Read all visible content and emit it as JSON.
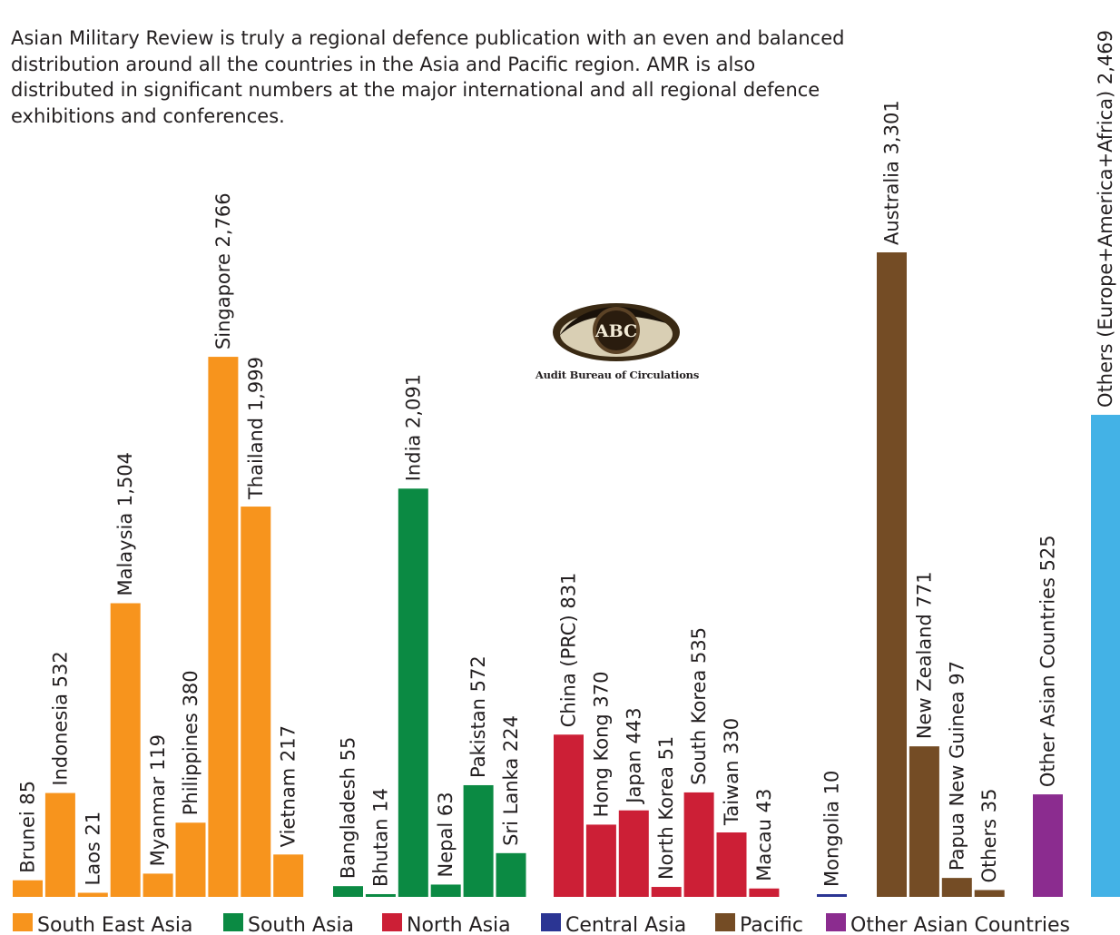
{
  "intro_text": "Asian Military Review is truly a regional defence publication with an even and balanced\ndistribution around all the countries in the Asia and Pacific region. AMR is also\ndistributed in significant numbers at  the major international and all regional defence\nexhibitions and conferences.",
  "logo": {
    "mark_text": "ABC",
    "caption": "Audit Bureau of Circulations"
  },
  "chart_data": {
    "type": "bar",
    "title": "",
    "xlabel": "",
    "ylabel": "",
    "ylim": [
      0,
      3301
    ],
    "grid": false,
    "legend_position": "bottom",
    "bar_labels_rotated": true,
    "series": [
      {
        "name": "South East Asia",
        "color": "#f7941d",
        "bars": [
          {
            "label": "Brunei 85",
            "value": 85
          },
          {
            "label": "Indonesia  532",
            "value": 532
          },
          {
            "label": "Laos 21",
            "value": 21
          },
          {
            "label": "Malaysia 1,504",
            "value": 1504
          },
          {
            "label": "Myanmar 119",
            "value": 119
          },
          {
            "label": "Philippines 380",
            "value": 380
          },
          {
            "label": "Singapore 2,766",
            "value": 2766
          },
          {
            "label": "Thailand  1,999",
            "value": 1999
          },
          {
            "label": "Vietnam 217",
            "value": 217
          }
        ]
      },
      {
        "name": "South Asia",
        "color": "#0b8a43",
        "bars": [
          {
            "label": "Bangladesh 55",
            "value": 55
          },
          {
            "label": "Bhutan 14",
            "value": 14
          },
          {
            "label": "India 2,091",
            "value": 2091
          },
          {
            "label": "Nepal 63",
            "value": 63
          },
          {
            "label": "Pakistan  572",
            "value": 572
          },
          {
            "label": "Sri Lanka 224",
            "value": 224
          }
        ]
      },
      {
        "name": "North Asia",
        "color": "#cc1f36",
        "bars": [
          {
            "label": "China (PRC) 831",
            "value": 831
          },
          {
            "label": "Hong Kong 370",
            "value": 370
          },
          {
            "label": "Japan 443",
            "value": 443
          },
          {
            "label": "North Korea  51",
            "value": 51
          },
          {
            "label": "South Korea  535",
            "value": 535
          },
          {
            "label": "Taiwan  330",
            "value": 330
          },
          {
            "label": "Macau 43",
            "value": 43
          }
        ]
      },
      {
        "name": "Central Asia",
        "color": "#2b3593",
        "bars": [
          {
            "label": "Mongolia 10",
            "value": 10
          }
        ]
      },
      {
        "name": "Pacific",
        "color": "#744c25",
        "bars": [
          {
            "label": "Australia  3,301",
            "value": 3301
          },
          {
            "label": "New Zealand  771",
            "value": 771
          },
          {
            "label": "Papua New Guinea 97",
            "value": 97
          },
          {
            "label": "Others  35",
            "value": 35
          }
        ]
      },
      {
        "name": "Other Asian Countries",
        "color": "#8b2c8f",
        "bars": [
          {
            "label": "Other Asian Countries  525",
            "value": 525
          }
        ]
      },
      {
        "name": "",
        "color": "#43b2e6",
        "bars": [
          {
            "label": "Others (Europe+America+Africa)  2,469",
            "value": 2469
          }
        ]
      }
    ]
  }
}
